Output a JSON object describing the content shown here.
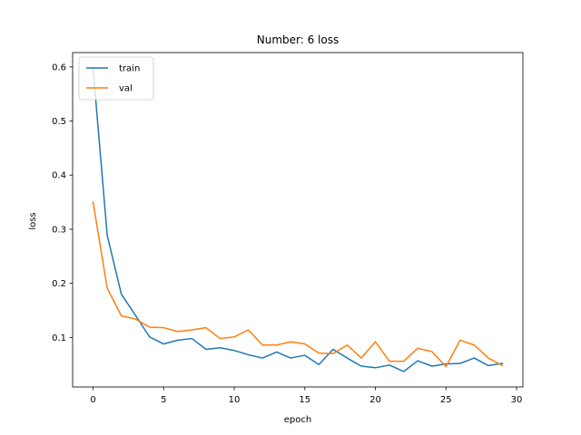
{
  "chart_data": {
    "type": "line",
    "title": "Number: 6 loss",
    "xlabel": "epoch",
    "ylabel": "loss",
    "xlim": [
      -1.45,
      30.45
    ],
    "ylim": [
      0.0085,
      0.6265
    ],
    "xticks": [
      0,
      5,
      10,
      15,
      20,
      25,
      30
    ],
    "yticks": [
      0.1,
      0.2,
      0.3,
      0.4,
      0.5,
      0.6
    ],
    "ytick_labels": [
      "0.1",
      "0.2",
      "0.3",
      "0.4",
      "0.5",
      "0.6"
    ],
    "grid": false,
    "legend": "upper left",
    "x": [
      0,
      1,
      2,
      3,
      4,
      5,
      6,
      7,
      8,
      9,
      10,
      11,
      12,
      13,
      14,
      15,
      16,
      17,
      18,
      19,
      20,
      21,
      22,
      23,
      24,
      25,
      26,
      27,
      28,
      29
    ],
    "series": [
      {
        "name": "train",
        "color": "#1f77b4",
        "values": [
          0.597,
          0.289,
          0.18,
          0.141,
          0.101,
          0.088,
          0.095,
          0.098,
          0.078,
          0.081,
          0.076,
          0.068,
          0.062,
          0.073,
          0.062,
          0.067,
          0.05,
          0.078,
          0.062,
          0.047,
          0.044,
          0.049,
          0.037,
          0.057,
          0.047,
          0.051,
          0.052,
          0.062,
          0.048,
          0.052
        ]
      },
      {
        "name": "val",
        "color": "#ff7f0e",
        "values": [
          0.35,
          0.191,
          0.14,
          0.134,
          0.119,
          0.118,
          0.111,
          0.114,
          0.118,
          0.098,
          0.101,
          0.114,
          0.086,
          0.086,
          0.092,
          0.088,
          0.071,
          0.07,
          0.086,
          0.062,
          0.092,
          0.056,
          0.056,
          0.08,
          0.074,
          0.046,
          0.095,
          0.086,
          0.062,
          0.048
        ]
      }
    ]
  }
}
